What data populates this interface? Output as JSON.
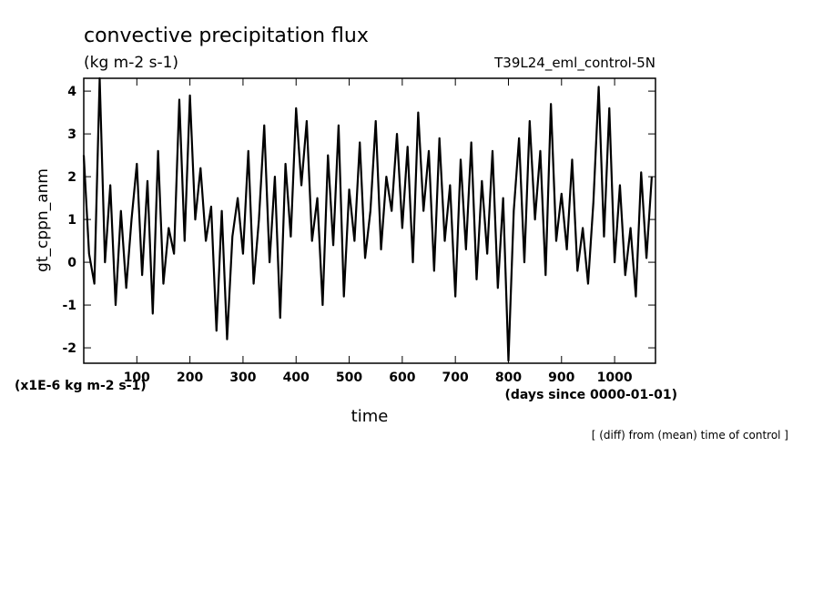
{
  "chart_data": {
    "type": "line",
    "title": "convective precipitation flux",
    "subtitle": "(kg m-2 s-1)",
    "run_label": "T39L24_eml_control-5N",
    "y_label": "gt_cppn_anm",
    "y_units": "(x1E-6 kg m-2 s-1)",
    "x_label": "time",
    "x_units": "(days since 0000-01-01)",
    "note": "[ (diff) from (mean) time of control ]",
    "xlim": [
      0,
      1077
    ],
    "ylim": [
      -2.36,
      4.3
    ],
    "xticks": [
      100,
      200,
      300,
      400,
      500,
      600,
      700,
      800,
      900,
      1000
    ],
    "yticks": [
      -2,
      -1,
      0,
      1,
      2,
      3,
      4
    ],
    "x": [
      0,
      10,
      20,
      30,
      40,
      50,
      60,
      70,
      80,
      90,
      100,
      110,
      120,
      130,
      140,
      150,
      160,
      170,
      180,
      190,
      200,
      210,
      220,
      230,
      240,
      250,
      260,
      270,
      280,
      290,
      300,
      310,
      320,
      330,
      340,
      350,
      360,
      370,
      380,
      390,
      400,
      410,
      420,
      430,
      440,
      450,
      460,
      470,
      480,
      490,
      500,
      510,
      520,
      530,
      540,
      550,
      560,
      570,
      580,
      590,
      600,
      610,
      620,
      630,
      640,
      650,
      660,
      670,
      680,
      690,
      700,
      710,
      720,
      730,
      740,
      750,
      760,
      770,
      780,
      790,
      800,
      810,
      820,
      830,
      840,
      850,
      860,
      870,
      880,
      890,
      900,
      910,
      920,
      930,
      940,
      950,
      960,
      970,
      980,
      990,
      1000,
      1010,
      1020,
      1030,
      1040,
      1050,
      1060,
      1070
    ],
    "series": [
      {
        "name": "gt_cppn_anm",
        "color": "#000000",
        "values": [
          2.5,
          0.2,
          -0.5,
          4.3,
          0.0,
          1.8,
          -1.0,
          1.2,
          -0.6,
          1.0,
          2.3,
          -0.3,
          1.9,
          -1.2,
          2.6,
          -0.5,
          0.8,
          0.2,
          3.8,
          0.5,
          3.9,
          1.0,
          2.2,
          0.5,
          1.3,
          -1.6,
          1.2,
          -1.8,
          0.6,
          1.5,
          0.2,
          2.6,
          -0.5,
          1.0,
          3.2,
          0.0,
          2.0,
          -1.3,
          2.3,
          0.6,
          3.6,
          1.8,
          3.3,
          0.5,
          1.5,
          -1.0,
          2.5,
          0.4,
          3.2,
          -0.8,
          1.7,
          0.5,
          2.8,
          0.1,
          1.2,
          3.3,
          0.3,
          2.0,
          1.2,
          3.0,
          0.8,
          2.7,
          0.0,
          3.5,
          1.2,
          2.6,
          -0.2,
          2.9,
          0.5,
          1.8,
          -0.8,
          2.4,
          0.3,
          2.8,
          -0.4,
          1.9,
          0.2,
          2.6,
          -0.6,
          1.5,
          -2.3,
          1.2,
          2.9,
          0.0,
          3.3,
          1.0,
          2.6,
          -0.3,
          3.7,
          0.5,
          1.6,
          0.3,
          2.4,
          -0.2,
          0.8,
          -0.5,
          1.4,
          4.1,
          0.6,
          3.6,
          0.0,
          1.8,
          -0.3,
          0.8,
          -0.8,
          2.1,
          0.1,
          2.0
        ]
      }
    ]
  }
}
